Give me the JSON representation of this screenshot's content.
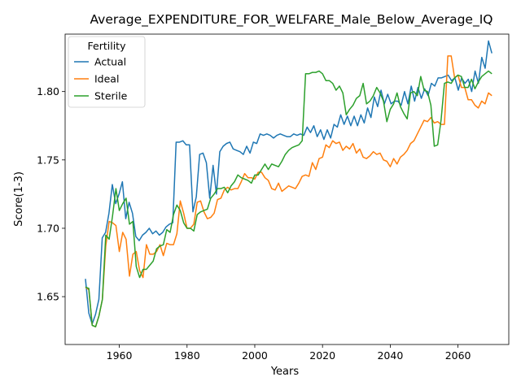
{
  "chart_data": {
    "type": "line",
    "title": "Average_EXPENDITURE_FOR_WELFARE_Male_Below_Average_IQ",
    "xlabel": "Years",
    "ylabel": "Score(1-3)",
    "xlim": [
      1944,
      2075
    ],
    "ylim": [
      1.615,
      1.842
    ],
    "xticks": [
      1960,
      1980,
      2000,
      2020,
      2040,
      2060
    ],
    "yticks": [
      1.65,
      1.7,
      1.75,
      1.8
    ],
    "ytick_labels": [
      "1.65",
      "1.70",
      "1.75",
      "1.80"
    ],
    "grid": false,
    "legend": {
      "title": "Fertility",
      "position": "top-left"
    },
    "x_start": 1950,
    "x_end": 2070,
    "series": [
      {
        "name": "Actual",
        "color": "#1f77b4",
        "values": [
          1.663,
          1.638,
          1.63,
          1.637,
          1.648,
          1.693,
          1.697,
          1.711,
          1.732,
          1.718,
          1.725,
          1.734,
          1.707,
          1.719,
          1.711,
          1.694,
          1.691,
          1.695,
          1.697,
          1.7,
          1.696,
          1.698,
          1.695,
          1.697,
          1.701,
          1.703,
          1.704,
          1.763,
          1.763,
          1.764,
          1.761,
          1.761,
          1.712,
          1.723,
          1.754,
          1.755,
          1.748,
          1.722,
          1.746,
          1.725,
          1.756,
          1.76,
          1.762,
          1.763,
          1.758,
          1.757,
          1.756,
          1.754,
          1.76,
          1.755,
          1.763,
          1.762,
          1.769,
          1.768,
          1.769,
          1.768,
          1.766,
          1.768,
          1.769,
          1.768,
          1.767,
          1.767,
          1.769,
          1.768,
          1.769,
          1.768,
          1.774,
          1.77,
          1.775,
          1.767,
          1.772,
          1.765,
          1.772,
          1.766,
          1.776,
          1.774,
          1.783,
          1.776,
          1.782,
          1.775,
          1.782,
          1.775,
          1.783,
          1.777,
          1.788,
          1.781,
          1.796,
          1.789,
          1.801,
          1.791,
          1.798,
          1.791,
          1.793,
          1.793,
          1.79,
          1.8,
          1.791,
          1.804,
          1.793,
          1.803,
          1.795,
          1.802,
          1.797,
          1.806,
          1.804,
          1.81,
          1.81,
          1.811,
          1.812,
          1.808,
          1.81,
          1.801,
          1.81,
          1.806,
          1.809,
          1.8,
          1.815,
          1.806,
          1.825,
          1.817,
          1.837,
          1.828
        ]
      },
      {
        "name": "Ideal",
        "color": "#ff7f0e",
        "values": [
          1.657,
          1.655,
          1.629,
          1.628,
          1.636,
          1.648,
          1.687,
          1.705,
          1.704,
          1.702,
          1.683,
          1.697,
          1.692,
          1.665,
          1.681,
          1.683,
          1.669,
          1.664,
          1.688,
          1.681,
          1.681,
          1.683,
          1.688,
          1.68,
          1.689,
          1.688,
          1.688,
          1.696,
          1.72,
          1.711,
          1.7,
          1.7,
          1.703,
          1.719,
          1.72,
          1.712,
          1.707,
          1.708,
          1.711,
          1.721,
          1.722,
          1.728,
          1.73,
          1.728,
          1.729,
          1.729,
          1.734,
          1.74,
          1.737,
          1.737,
          1.736,
          1.741,
          1.741,
          1.737,
          1.735,
          1.729,
          1.728,
          1.733,
          1.727,
          1.729,
          1.731,
          1.73,
          1.729,
          1.733,
          1.738,
          1.739,
          1.738,
          1.748,
          1.743,
          1.751,
          1.752,
          1.761,
          1.759,
          1.764,
          1.762,
          1.763,
          1.757,
          1.76,
          1.758,
          1.762,
          1.755,
          1.758,
          1.752,
          1.751,
          1.753,
          1.756,
          1.754,
          1.755,
          1.75,
          1.749,
          1.745,
          1.751,
          1.747,
          1.752,
          1.754,
          1.757,
          1.762,
          1.764,
          1.769,
          1.774,
          1.779,
          1.778,
          1.781,
          1.777,
          1.778,
          1.776,
          1.776,
          1.826,
          1.826,
          1.81,
          1.812,
          1.803,
          1.803,
          1.794,
          1.794,
          1.79,
          1.788,
          1.793,
          1.791,
          1.799,
          1.797
        ]
      },
      {
        "name": "Sterile",
        "color": "#2ca02c",
        "values": [
          1.657,
          1.656,
          1.629,
          1.628,
          1.636,
          1.648,
          1.695,
          1.692,
          1.709,
          1.729,
          1.713,
          1.718,
          1.722,
          1.703,
          1.705,
          1.672,
          1.664,
          1.67,
          1.67,
          1.673,
          1.676,
          1.685,
          1.687,
          1.688,
          1.699,
          1.697,
          1.71,
          1.717,
          1.713,
          1.704,
          1.7,
          1.7,
          1.698,
          1.71,
          1.712,
          1.713,
          1.714,
          1.722,
          1.725,
          1.729,
          1.729,
          1.73,
          1.726,
          1.731,
          1.734,
          1.739,
          1.737,
          1.736,
          1.735,
          1.733,
          1.739,
          1.739,
          1.743,
          1.747,
          1.743,
          1.747,
          1.746,
          1.745,
          1.749,
          1.754,
          1.757,
          1.759,
          1.76,
          1.761,
          1.764,
          1.813,
          1.813,
          1.814,
          1.814,
          1.815,
          1.813,
          1.808,
          1.808,
          1.806,
          1.801,
          1.804,
          1.799,
          1.783,
          1.787,
          1.79,
          1.795,
          1.797,
          1.806,
          1.791,
          1.793,
          1.797,
          1.803,
          1.799,
          1.793,
          1.778,
          1.787,
          1.791,
          1.799,
          1.789,
          1.784,
          1.78,
          1.799,
          1.8,
          1.797,
          1.811,
          1.801,
          1.8,
          1.79,
          1.76,
          1.761,
          1.779,
          1.806,
          1.807,
          1.806,
          1.81,
          1.812,
          1.811,
          1.803,
          1.803,
          1.809,
          1.802,
          1.807,
          1.811,
          1.813,
          1.815,
          1.813
        ]
      }
    ]
  }
}
